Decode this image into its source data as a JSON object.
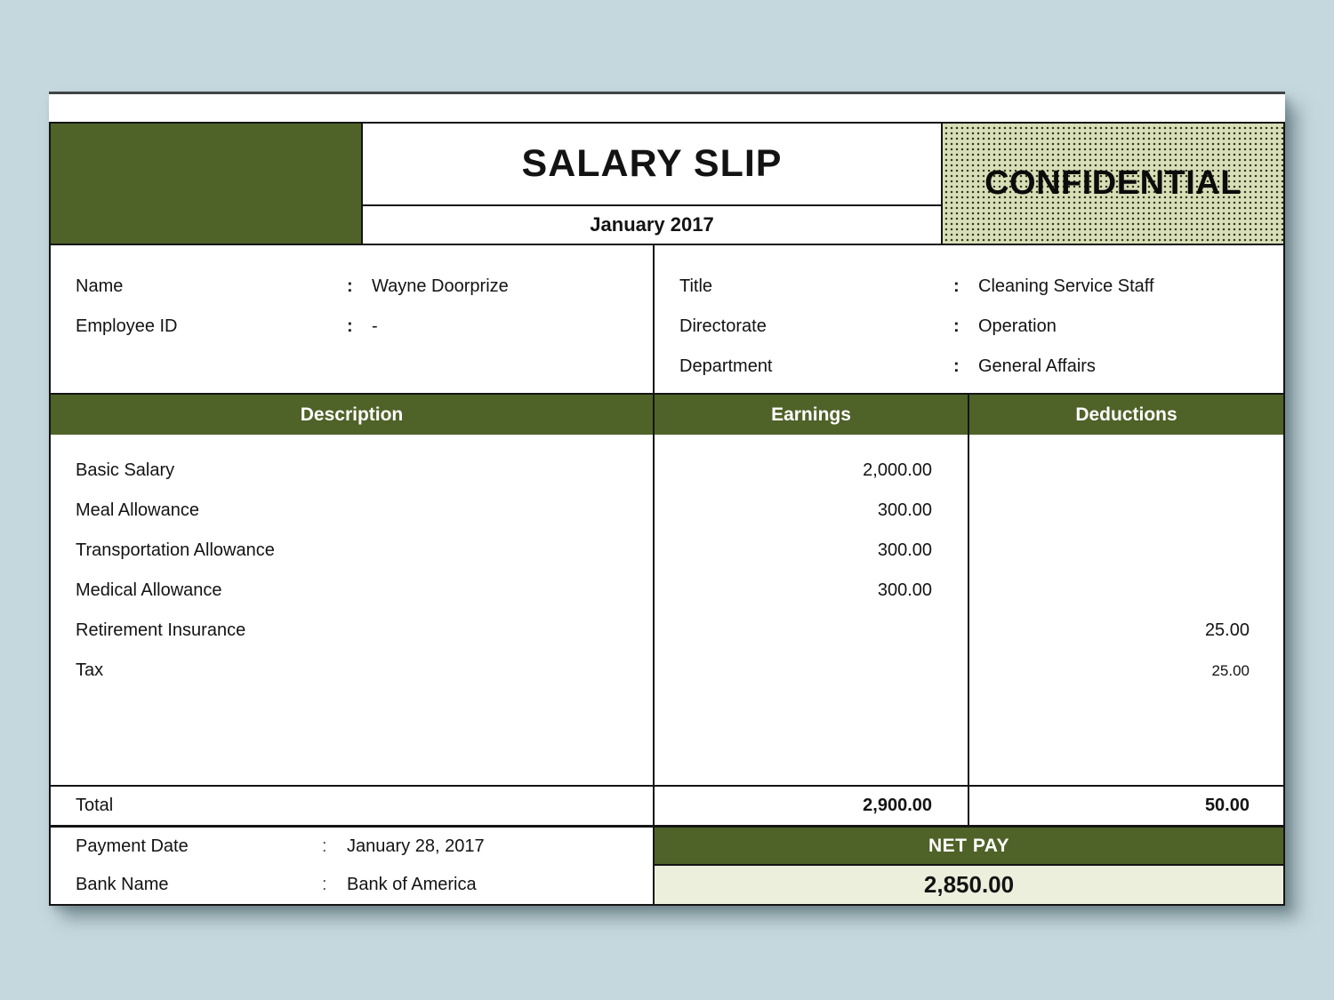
{
  "header": {
    "title": "SALARY SLIP",
    "period": "January 2017",
    "confidential": "CONFIDENTIAL"
  },
  "employee": {
    "left": [
      {
        "label": "Name",
        "sep": ":",
        "value": "Wayne Doorprize"
      },
      {
        "label": "Employee ID",
        "sep": ":",
        "value": "-"
      }
    ],
    "right": [
      {
        "label": "Title",
        "sep": ":",
        "value": "Cleaning Service Staff"
      },
      {
        "label": "Directorate",
        "sep": ":",
        "value": "Operation"
      },
      {
        "label": "Department",
        "sep": ":",
        "value": "General Affairs"
      }
    ]
  },
  "table": {
    "headers": {
      "description": "Description",
      "earnings": "Earnings",
      "deductions": "Deductions"
    },
    "rows": [
      {
        "description": "Basic Salary",
        "earnings": "2,000.00",
        "deductions": ""
      },
      {
        "description": "Meal Allowance",
        "earnings": "300.00",
        "deductions": ""
      },
      {
        "description": "Transportation Allowance",
        "earnings": "300.00",
        "deductions": ""
      },
      {
        "description": "Medical Allowance",
        "earnings": "300.00",
        "deductions": ""
      },
      {
        "description": "Retirement Insurance",
        "earnings": "",
        "deductions": "25.00"
      },
      {
        "description": "Tax",
        "earnings": "",
        "deductions": "25.00"
      }
    ],
    "total": {
      "label": "Total",
      "earnings": "2,900.00",
      "deductions": "50.00"
    }
  },
  "footer": {
    "payment_date": {
      "label": "Payment Date",
      "sep": ":",
      "value": "January 28, 2017"
    },
    "bank_name": {
      "label": "Bank Name",
      "sep": ":",
      "value": "Bank of America"
    },
    "net_pay_label": "NET PAY",
    "net_pay_value": "2,850.00"
  },
  "colors": {
    "olive_green": "#4F6228",
    "confidential_bg": "#D8DEB7",
    "net_pay_bg": "#ECEFDC",
    "page_background": "#C5D8DE"
  }
}
